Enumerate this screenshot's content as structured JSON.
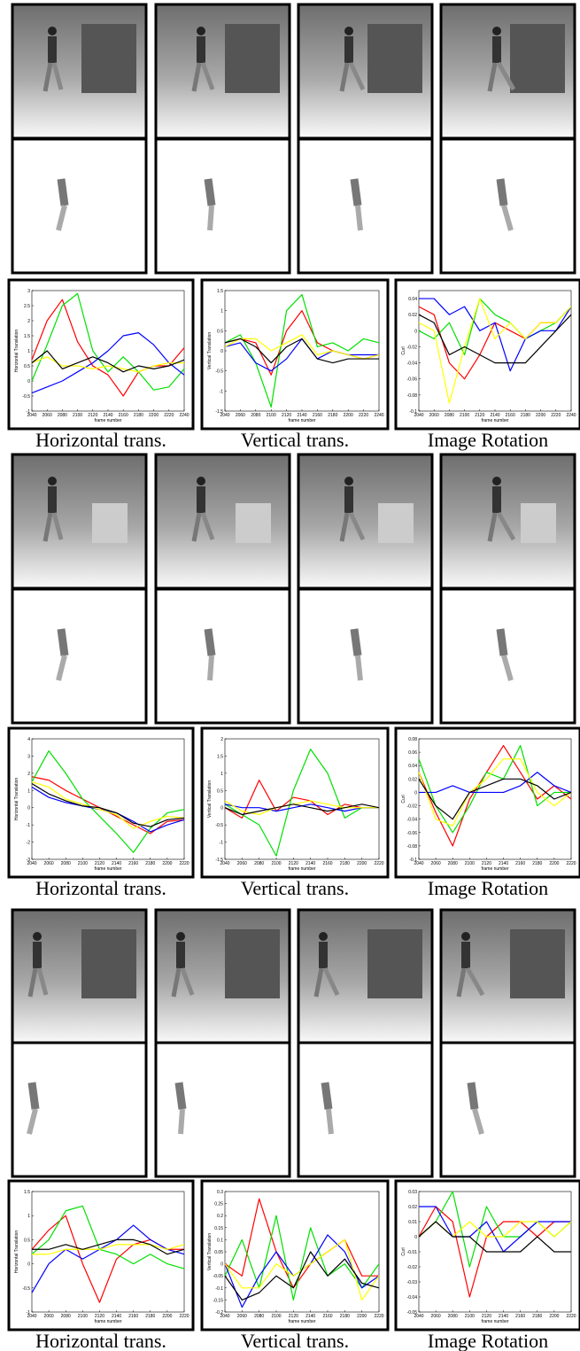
{
  "chart_data": [
    {
      "type": "line",
      "ylabel": "Horizontal Translation",
      "xlabel": "frame number",
      "caption": "Horizontal trans.",
      "x": [
        2040,
        2060,
        2080,
        2100,
        2120,
        2140,
        2160,
        2180,
        2200,
        2220,
        2240
      ],
      "xlim": [
        2040,
        2240
      ],
      "xticks": [
        2040,
        2060,
        2080,
        2100,
        2120,
        2140,
        2160,
        2180,
        2200,
        2220,
        2240
      ],
      "ylim": [
        -1,
        3
      ],
      "yticks": [
        -1,
        -0.5,
        0,
        0.5,
        1,
        1.5,
        2,
        2.5,
        3
      ],
      "series": [
        {
          "color": "#ff0000",
          "values": [
            0.7,
            2.0,
            2.7,
            1.3,
            0.5,
            0.2,
            -0.5,
            0.3,
            0.5,
            0.5,
            1.1
          ]
        },
        {
          "color": "#00e000",
          "values": [
            0,
            1.2,
            2.5,
            2.9,
            1.0,
            0.3,
            0.8,
            0.3,
            -0.3,
            -0.2,
            0.4
          ]
        },
        {
          "color": "#0000ff",
          "values": [
            -0.4,
            -0.2,
            0.0,
            0.3,
            0.6,
            1.0,
            1.5,
            1.6,
            1.2,
            0.6,
            0.2
          ]
        },
        {
          "color": "#ffff00",
          "values": [
            0.6,
            0.8,
            0.5,
            0.5,
            0.4,
            0.5,
            0.4,
            0.3,
            0.5,
            0.6,
            0.6
          ]
        },
        {
          "color": "#000000",
          "values": [
            0.6,
            1.0,
            0.4,
            0.6,
            0.8,
            0.6,
            0.3,
            0.5,
            0.4,
            0.5,
            0.7
          ]
        }
      ]
    },
    {
      "type": "line",
      "ylabel": "Vertical Translation",
      "xlabel": "frame number",
      "caption": "Vertical trans.",
      "x": [
        2040,
        2060,
        2080,
        2100,
        2120,
        2140,
        2160,
        2180,
        2200,
        2220,
        2240
      ],
      "xlim": [
        2040,
        2240
      ],
      "xticks": [
        2040,
        2060,
        2080,
        2100,
        2120,
        2140,
        2160,
        2180,
        2200,
        2220,
        2240
      ],
      "ylim": [
        -1.5,
        1.5
      ],
      "yticks": [
        -1.5,
        -1,
        -0.5,
        0,
        0.5,
        1,
        1.5
      ],
      "series": [
        {
          "color": "#ff0000",
          "values": [
            0.2,
            0.3,
            0.2,
            -0.6,
            0.5,
            1.0,
            0.2,
            0.0,
            -0.1,
            -0.2,
            -0.1
          ]
        },
        {
          "color": "#00e000",
          "values": [
            0.2,
            0.4,
            -0.3,
            -1.4,
            1.0,
            1.4,
            0.1,
            0.2,
            0.0,
            0.3,
            0.2
          ]
        },
        {
          "color": "#0000ff",
          "values": [
            0.1,
            0.2,
            -0.3,
            -0.5,
            -0.2,
            0.3,
            -0.2,
            0.0,
            -0.1,
            -0.1,
            -0.1
          ]
        },
        {
          "color": "#ffff00",
          "values": [
            0.1,
            0.3,
            0.3,
            0.0,
            0.2,
            0.4,
            -0.1,
            0.0,
            -0.1,
            -0.2,
            -0.1
          ]
        },
        {
          "color": "#000000",
          "values": [
            0.2,
            0.3,
            0.1,
            -0.3,
            0.1,
            0.3,
            -0.2,
            -0.3,
            -0.2,
            -0.2,
            -0.2
          ]
        }
      ]
    },
    {
      "type": "line",
      "ylabel": "Curl",
      "xlabel": "frame number",
      "caption": "Image Rotation",
      "x": [
        2040,
        2060,
        2080,
        2100,
        2120,
        2140,
        2160,
        2180,
        2200,
        2220,
        2240
      ],
      "xlim": [
        2040,
        2240
      ],
      "xticks": [
        2040,
        2060,
        2080,
        2100,
        2120,
        2140,
        2160,
        2180,
        2200,
        2220,
        2240
      ],
      "ylim": [
        -0.1,
        0.05
      ],
      "yticks": [
        -0.1,
        -0.08,
        -0.06,
        -0.04,
        -0.02,
        0,
        0.02,
        0.04
      ],
      "series": [
        {
          "color": "#ff0000",
          "values": [
            0.03,
            0.02,
            -0.04,
            -0.06,
            -0.03,
            0.01,
            0.0,
            -0.01,
            0.01,
            0.01,
            0.03
          ]
        },
        {
          "color": "#00e000",
          "values": [
            0.0,
            -0.01,
            0.01,
            -0.03,
            0.04,
            0.02,
            0.01,
            -0.01,
            0.0,
            0.01,
            0.03
          ]
        },
        {
          "color": "#0000ff",
          "values": [
            0.04,
            0.04,
            0.02,
            0.03,
            0.0,
            0.01,
            -0.05,
            -0.01,
            0.0,
            0.0,
            0.03
          ]
        },
        {
          "color": "#ffff00",
          "values": [
            0.01,
            0.0,
            -0.09,
            -0.02,
            0.04,
            -0.01,
            0.01,
            -0.01,
            0.01,
            0.01,
            0.03
          ]
        },
        {
          "color": "#000000",
          "values": [
            0.02,
            0.01,
            -0.03,
            -0.02,
            -0.03,
            -0.04,
            -0.04,
            -0.04,
            -0.02,
            0.0,
            0.02
          ]
        }
      ]
    },
    {
      "type": "line",
      "ylabel": "Horizontal Translation",
      "xlabel": "frame number",
      "caption": "Horizontal trans.",
      "x": [
        2040,
        2060,
        2080,
        2100,
        2120,
        2140,
        2160,
        2180,
        2200,
        2220
      ],
      "xlim": [
        2040,
        2220
      ],
      "xticks": [
        2040,
        2060,
        2080,
        2100,
        2120,
        2140,
        2160,
        2180,
        2200,
        2220
      ],
      "ylim": [
        -3,
        4
      ],
      "yticks": [
        -3,
        -2,
        -1,
        0,
        1,
        2,
        3,
        4
      ],
      "series": [
        {
          "color": "#ff0000",
          "values": [
            1.8,
            1.6,
            1.0,
            0.5,
            0,
            -0.5,
            -1.0,
            -1.5,
            -0.8,
            -0.7
          ]
        },
        {
          "color": "#00e000",
          "values": [
            1.5,
            3.3,
            2.0,
            0.5,
            -0.5,
            -1.5,
            -2.6,
            -1.2,
            -0.3,
            -0.1
          ]
        },
        {
          "color": "#0000ff",
          "values": [
            1.2,
            0.6,
            0.3,
            0.1,
            -0.1,
            -0.3,
            -0.8,
            -1.4,
            -1.0,
            -0.7
          ]
        },
        {
          "color": "#ffff00",
          "values": [
            1.5,
            1.2,
            0.5,
            0.2,
            -0.1,
            -0.4,
            -1.2,
            -0.8,
            -0.5,
            -0.6
          ]
        },
        {
          "color": "#000000",
          "values": [
            1.4,
            0.8,
            0.4,
            0.1,
            0.0,
            -0.3,
            -0.9,
            -1.1,
            -0.7,
            -0.6
          ]
        }
      ]
    },
    {
      "type": "line",
      "ylabel": "Vertical Translation",
      "xlabel": "frame number",
      "caption": "Vertical trans.",
      "x": [
        2040,
        2060,
        2080,
        2100,
        2120,
        2140,
        2160,
        2180,
        2200,
        2220
      ],
      "xlim": [
        2040,
        2220
      ],
      "xticks": [
        2040,
        2060,
        2080,
        2100,
        2120,
        2140,
        2160,
        2180,
        2200,
        2220
      ],
      "ylim": [
        -1.5,
        2
      ],
      "yticks": [
        -1.5,
        -1,
        -0.5,
        0,
        0.5,
        1,
        1.5,
        2
      ],
      "series": [
        {
          "color": "#ff0000",
          "values": [
            0.0,
            -0.3,
            0.8,
            -0.1,
            0.3,
            0.2,
            -0.2,
            0.1,
            0.0,
            0.0
          ]
        },
        {
          "color": "#00e000",
          "values": [
            0.1,
            -0.2,
            -0.5,
            -1.4,
            0.5,
            1.7,
            1.0,
            -0.3,
            0.0,
            0.0
          ]
        },
        {
          "color": "#0000ff",
          "values": [
            0.1,
            0.0,
            0.0,
            -0.1,
            0.0,
            0.1,
            0.0,
            -0.1,
            0.0,
            0.0
          ]
        },
        {
          "color": "#ffff00",
          "values": [
            0.2,
            -0.1,
            -0.2,
            0.0,
            0.1,
            0.2,
            0.1,
            0.0,
            0.0,
            0.0
          ]
        },
        {
          "color": "#000000",
          "values": [
            0.0,
            -0.2,
            -0.1,
            0.0,
            0.1,
            0.0,
            -0.1,
            0.0,
            0.1,
            0.0
          ]
        }
      ]
    },
    {
      "type": "line",
      "ylabel": "Curl",
      "xlabel": "frame number",
      "caption": "Image Rotation",
      "x": [
        2040,
        2060,
        2080,
        2100,
        2120,
        2140,
        2160,
        2180,
        2200,
        2220
      ],
      "xlim": [
        2040,
        2220
      ],
      "xticks": [
        2040,
        2060,
        2080,
        2100,
        2120,
        2140,
        2160,
        2180,
        2200,
        2220
      ],
      "ylim": [
        -0.1,
        0.08
      ],
      "yticks": [
        -0.1,
        -0.08,
        -0.06,
        -0.04,
        -0.02,
        0,
        0.02,
        0.04,
        0.06,
        0.08
      ],
      "series": [
        {
          "color": "#ff0000",
          "values": [
            0.03,
            -0.03,
            -0.08,
            -0.01,
            0.03,
            0.07,
            0.03,
            -0.01,
            0.01,
            -0.01
          ]
        },
        {
          "color": "#00e000",
          "values": [
            0.05,
            -0.02,
            -0.06,
            -0.02,
            0.03,
            0.02,
            0.07,
            -0.02,
            0.0,
            0.0
          ]
        },
        {
          "color": "#0000ff",
          "values": [
            0.0,
            0.0,
            0.01,
            0.0,
            0.0,
            0.0,
            0.01,
            0.03,
            0.01,
            0.0
          ]
        },
        {
          "color": "#ffff00",
          "values": [
            0.03,
            -0.04,
            -0.05,
            0.0,
            0.02,
            0.05,
            0.05,
            0.0,
            -0.02,
            0.0
          ]
        },
        {
          "color": "#000000",
          "values": [
            0.02,
            -0.02,
            -0.04,
            0.0,
            0.01,
            0.02,
            0.02,
            0.01,
            -0.01,
            0.0
          ]
        }
      ]
    },
    {
      "type": "line",
      "ylabel": "Horizontal Translation",
      "xlabel": "frame number",
      "caption": "Horizontal trans.",
      "x": [
        2040,
        2060,
        2080,
        2100,
        2120,
        2140,
        2160,
        2180,
        2200,
        2220
      ],
      "xlim": [
        2040,
        2220
      ],
      "xticks": [
        2040,
        2060,
        2080,
        2100,
        2120,
        2140,
        2160,
        2180,
        2200,
        2220
      ],
      "ylim": [
        -1,
        1.5
      ],
      "yticks": [
        -1,
        -0.5,
        0,
        0.5,
        1,
        1.5
      ],
      "series": [
        {
          "color": "#ff0000",
          "values": [
            0.3,
            0.7,
            1.0,
            0.0,
            -0.8,
            0.1,
            0.4,
            0.5,
            0.3,
            0.3
          ]
        },
        {
          "color": "#00e000",
          "values": [
            0.2,
            0.5,
            1.1,
            1.2,
            0.3,
            0.2,
            0.0,
            0.2,
            0.0,
            -0.1
          ]
        },
        {
          "color": "#0000ff",
          "values": [
            -0.6,
            0.0,
            0.3,
            0.1,
            0.3,
            0.5,
            0.8,
            0.5,
            0.3,
            0.2
          ]
        },
        {
          "color": "#ffff00",
          "values": [
            0.2,
            0.2,
            0.3,
            0.3,
            0.3,
            0.4,
            0.4,
            0.4,
            0.3,
            0.4
          ]
        },
        {
          "color": "#000000",
          "values": [
            0.3,
            0.3,
            0.4,
            0.3,
            0.4,
            0.5,
            0.5,
            0.4,
            0.2,
            0.3
          ]
        }
      ]
    },
    {
      "type": "line",
      "ylabel": "Vertical Translation",
      "xlabel": "frame number",
      "caption": "Vertical trans.",
      "x": [
        2040,
        2060,
        2080,
        2100,
        2120,
        2140,
        2160,
        2180,
        2200,
        2220
      ],
      "xlim": [
        2040,
        2220
      ],
      "xticks": [
        2040,
        2060,
        2080,
        2100,
        2120,
        2140,
        2160,
        2180,
        2200,
        2220
      ],
      "ylim": [
        -0.2,
        0.3
      ],
      "yticks": [
        -0.2,
        -0.15,
        -0.1,
        -0.05,
        0,
        0.05,
        0.1,
        0.15,
        0.2,
        0.25,
        0.3
      ],
      "series": [
        {
          "color": "#ff0000",
          "values": [
            0.0,
            -0.05,
            0.27,
            0.05,
            -0.1,
            0.0,
            0.05,
            0.1,
            -0.05,
            -0.05
          ]
        },
        {
          "color": "#00e000",
          "values": [
            -0.05,
            0.1,
            -0.1,
            0.2,
            -0.15,
            0.15,
            -0.05,
            0.0,
            -0.1,
            0.0
          ]
        },
        {
          "color": "#0000ff",
          "values": [
            0.0,
            -0.18,
            -0.05,
            0.05,
            -0.05,
            0.0,
            0.12,
            0.05,
            -0.1,
            -0.05
          ]
        },
        {
          "color": "#ffff00",
          "values": [
            0.0,
            -0.1,
            -0.1,
            0.0,
            -0.05,
            0.0,
            0.05,
            0.1,
            -0.15,
            -0.05
          ]
        },
        {
          "color": "#000000",
          "values": [
            -0.05,
            -0.15,
            -0.12,
            -0.05,
            -0.1,
            0.05,
            -0.05,
            0.02,
            -0.08,
            -0.1
          ]
        }
      ]
    },
    {
      "type": "line",
      "ylabel": "Curl",
      "xlabel": "frame number",
      "caption": "Image Rotation",
      "x": [
        2040,
        2060,
        2080,
        2100,
        2120,
        2140,
        2160,
        2180,
        2200,
        2220
      ],
      "xlim": [
        2040,
        2220
      ],
      "xticks": [
        2040,
        2060,
        2080,
        2100,
        2120,
        2140,
        2160,
        2180,
        2200,
        2220
      ],
      "ylim": [
        -0.05,
        0.03
      ],
      "yticks": [
        -0.05,
        -0.04,
        -0.03,
        -0.02,
        -0.01,
        0,
        0.01,
        0.02,
        0.03
      ],
      "series": [
        {
          "color": "#ff0000",
          "values": [
            0.0,
            0.02,
            0.01,
            -0.04,
            0.0,
            0.01,
            0.01,
            0.0,
            0.01,
            0.01
          ]
        },
        {
          "color": "#00e000",
          "values": [
            0.0,
            0.01,
            0.03,
            -0.02,
            0.02,
            0.0,
            0.0,
            0.01,
            0.0,
            0.01
          ]
        },
        {
          "color": "#0000ff",
          "values": [
            0.02,
            0.02,
            0.0,
            0.0,
            0.01,
            -0.01,
            0.0,
            0.01,
            0.01,
            0.01
          ]
        },
        {
          "color": "#ffff00",
          "values": [
            0.0,
            0.01,
            0.0,
            0.01,
            0.0,
            0.0,
            0.01,
            0.01,
            0.0,
            0.01
          ]
        },
        {
          "color": "#000000",
          "values": [
            0.0,
            0.01,
            0.0,
            0.0,
            -0.01,
            -0.01,
            -0.01,
            0.0,
            -0.01,
            -0.01
          ]
        }
      ]
    }
  ]
}
